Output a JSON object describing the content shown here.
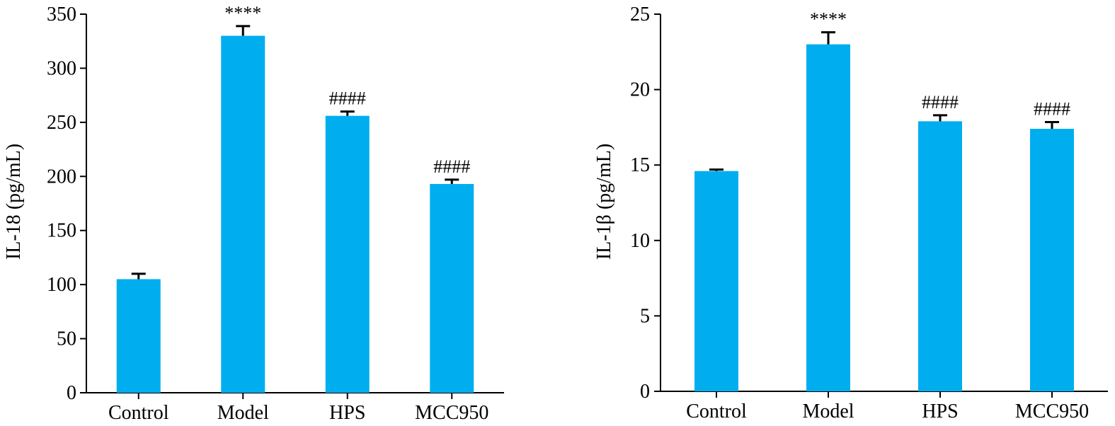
{
  "chart_data": [
    {
      "type": "bar",
      "categories": [
        "Control",
        "Model",
        "HPS",
        "MCC950"
      ],
      "values": [
        105,
        330,
        256,
        193
      ],
      "errors": [
        5,
        9,
        4,
        4
      ],
      "annotations": [
        "",
        "****",
        "####",
        "####"
      ],
      "ylabel": "IL-18 (pg/mL)",
      "ylim": [
        0,
        350
      ],
      "yticks": [
        0,
        50,
        100,
        150,
        200,
        250,
        300,
        350
      ],
      "bar_color": "#00AEEF",
      "grid": false
    },
    {
      "type": "bar",
      "categories": [
        "Control",
        "Model",
        "HPS",
        "MCC950"
      ],
      "values": [
        14.6,
        23.0,
        17.9,
        17.4
      ],
      "errors": [
        0.1,
        0.8,
        0.4,
        0.45
      ],
      "annotations": [
        "",
        "****",
        "####",
        "####"
      ],
      "ylabel": "IL-1β (pg/mL)",
      "ylim": [
        0,
        25
      ],
      "yticks": [
        0,
        5,
        10,
        15,
        20,
        25
      ],
      "bar_color": "#00AEEF",
      "grid": false
    }
  ]
}
